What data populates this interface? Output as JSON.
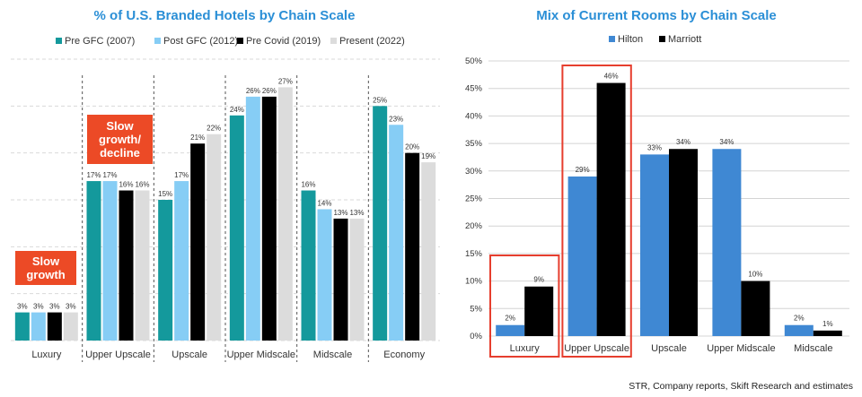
{
  "source": "STR, Company reports, Skift Research and estimates",
  "chart_data": [
    {
      "type": "bar",
      "title": "% of U.S. Branded Hotels by Chain Scale",
      "categories": [
        "Luxury",
        "Upper Upscale",
        "Upscale",
        "Upper Midscale",
        "Midscale",
        "Economy"
      ],
      "series": [
        {
          "name": "Pre GFC (2007)",
          "color": "#14999c",
          "values": [
            3,
            17,
            15,
            24,
            16,
            25
          ]
        },
        {
          "name": "Post GFC (2012)",
          "color": "#86cdf5",
          "values": [
            3,
            17,
            17,
            26,
            14,
            23
          ]
        },
        {
          "name": "Pre Covid (2019)",
          "color": "#000000",
          "values": [
            3,
            16,
            21,
            26,
            13,
            20
          ]
        },
        {
          "name": "Present (2022)",
          "color": "#dcdcdc",
          "values": [
            3,
            16,
            22,
            27,
            13,
            19
          ]
        }
      ],
      "value_suffix": "%",
      "ylim": [
        0,
        30
      ],
      "grid": "dashed",
      "legend_position": "top",
      "callouts": [
        {
          "label_lines": [
            "Slow",
            "growth"
          ],
          "category": "Luxury",
          "color": "#ec4a26"
        },
        {
          "label_lines": [
            "Slow",
            "growth/",
            "decline"
          ],
          "category": "Upper Upscale",
          "color": "#ec4a26"
        }
      ]
    },
    {
      "type": "bar",
      "title": "Mix of Current Rooms by Chain Scale",
      "categories": [
        "Luxury",
        "Upper Upscale",
        "Upscale",
        "Upper Midscale",
        "Midscale"
      ],
      "series": [
        {
          "name": "Hilton",
          "color": "#3f88d3",
          "values": [
            2,
            29,
            33,
            34,
            2
          ]
        },
        {
          "name": "Marriott",
          "color": "#000000",
          "values": [
            9,
            46,
            34,
            10,
            1
          ]
        }
      ],
      "value_suffix": "%",
      "ylim": [
        0,
        50
      ],
      "yticks": [
        "0%",
        "5%",
        "10%",
        "15%",
        "20%",
        "25%",
        "30%",
        "35%",
        "40%",
        "45%",
        "50%"
      ],
      "grid": "solid",
      "legend_position": "top",
      "highlighted_categories": [
        "Luxury",
        "Upper Upscale"
      ],
      "highlight_color": "#e63e2e"
    }
  ]
}
